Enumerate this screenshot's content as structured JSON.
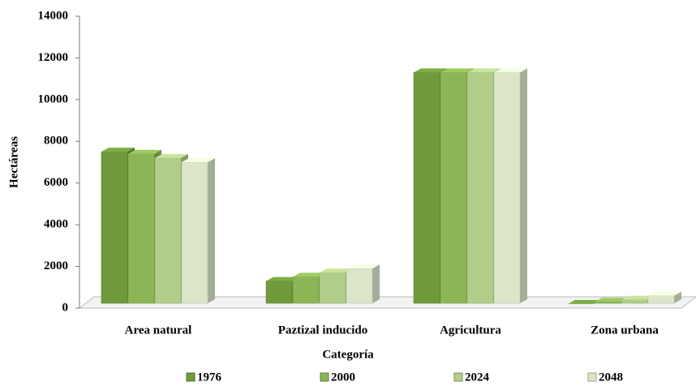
{
  "chart_data": {
    "type": "bar3d",
    "x_label": "Categoría",
    "y_label": "Hectáreas",
    "categories": [
      "Area natural",
      "Paztizal inducido",
      "Agricultura",
      "Zona urbana"
    ],
    "series": [
      {
        "name": "1976",
        "color": "#6f9b3c",
        "values": [
          7500,
          1300,
          11300,
          200
        ]
      },
      {
        "name": "2000",
        "color": "#8cb656",
        "values": [
          7400,
          1500,
          11300,
          300
        ]
      },
      {
        "name": "2024",
        "color": "#b2cd8a",
        "values": [
          7200,
          1700,
          11300,
          400
        ]
      },
      {
        "name": "2048",
        "color": "#dbe6c9",
        "values": [
          7000,
          1900,
          11300,
          600
        ]
      }
    ],
    "ylim": [
      0,
      14000
    ],
    "yticks": [
      0,
      2000,
      4000,
      6000,
      8000,
      10000,
      12000,
      14000
    ]
  }
}
